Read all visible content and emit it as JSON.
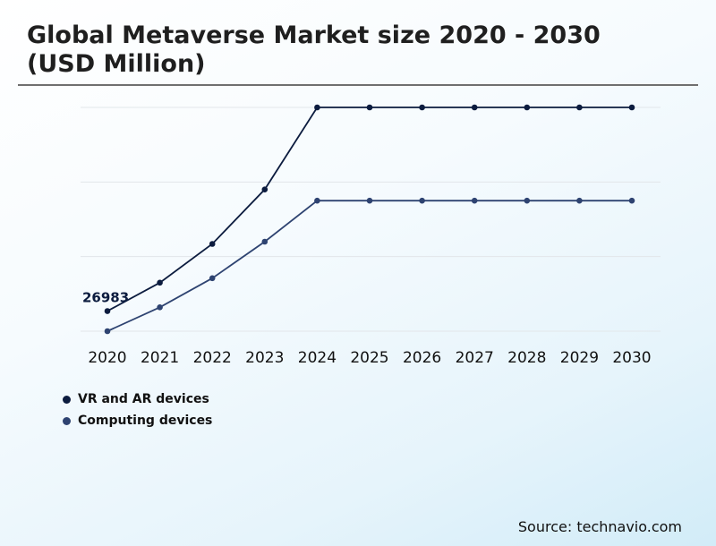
{
  "title_line1": "Global Metaverse Market size 2020 - 2030",
  "title_line2": "(USD Million)",
  "source": "Source: technavio.com",
  "colors": {
    "series1": "#0c1c3f",
    "series2": "#2e4371",
    "grid": "#e2e6ea",
    "text": "#111111"
  },
  "chart_data": {
    "type": "line",
    "title": "Global Metaverse Market size 2020 - 2030 (USD Million)",
    "xlabel": "",
    "ylabel": "",
    "categories": [
      "2020",
      "2021",
      "2022",
      "2023",
      "2024",
      "2025",
      "2026",
      "2027",
      "2028",
      "2029",
      "2030"
    ],
    "ylim": [
      0,
      300000
    ],
    "grid": true,
    "legend_position": "bottom-left",
    "series": [
      {
        "name": "VR and AR devices",
        "values": [
          26983,
          65000,
          117000,
          190000,
          300000,
          300000,
          300000,
          300000,
          300000,
          300000,
          300000
        ]
      },
      {
        "name": "Computing devices",
        "values": [
          0,
          32000,
          71000,
          120000,
          175000,
          175000,
          175000,
          175000,
          175000,
          175000,
          175000
        ]
      }
    ],
    "annotations": [
      {
        "series": "VR and AR devices",
        "category": "2020",
        "label": "26983"
      }
    ]
  }
}
